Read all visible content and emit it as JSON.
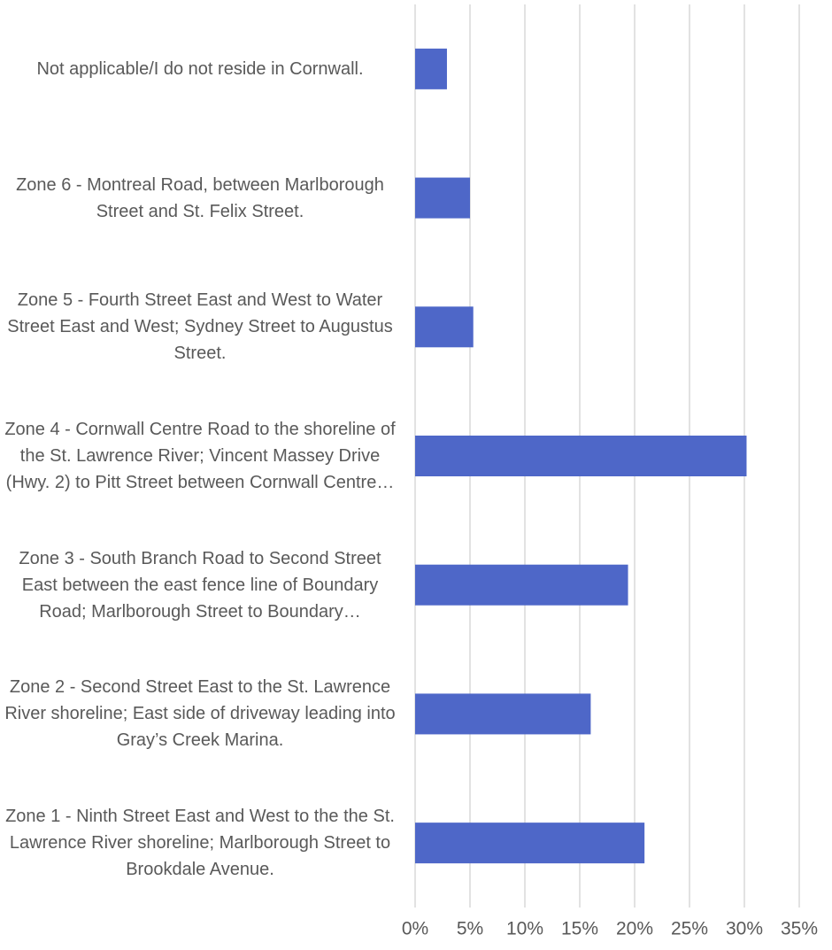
{
  "chart_data": {
    "type": "bar",
    "orientation": "horizontal",
    "categories": [
      "Not applicable/I do not reside in Cornwall.",
      "Zone 6 - Montreal Road, between Marlborough Street and St. Felix Street.",
      "Zone 5 - Fourth Street East and West to Water Street East and West; Sydney Street to Augustus Street.",
      "Zone 4 - Cornwall Centre Road to the shoreline of the St. Lawrence River; Vincent Massey Drive (Hwy. 2) to Pitt Street between Cornwall Centre…",
      "Zone 3 - South Branch Road to Second Street East between the east fence line of Boundary Road; Marlborough Street to Boundary…",
      "Zone 2 - Second Street East to the St. Lawrence River shoreline; East side of driveway leading into Gray’s Creek Marina.",
      "Zone 1 - Ninth Street East and West to the the St. Lawrence River shoreline; Marlborough Street to Brookdale Avenue."
    ],
    "values": [
      2.9,
      5.0,
      5.3,
      30.2,
      19.4,
      16.0,
      20.9
    ],
    "color": "#4e67c8",
    "xlim": [
      0,
      35
    ],
    "xticks": [
      {
        "value": 0,
        "label": "0%"
      },
      {
        "value": 5,
        "label": "5%"
      },
      {
        "value": 10,
        "label": "10%"
      },
      {
        "value": 15,
        "label": "15%"
      },
      {
        "value": 20,
        "label": "20%"
      },
      {
        "value": 25,
        "label": "25%"
      },
      {
        "value": 30,
        "label": "30%"
      },
      {
        "value": 35,
        "label": "35%"
      }
    ],
    "grid": true
  }
}
